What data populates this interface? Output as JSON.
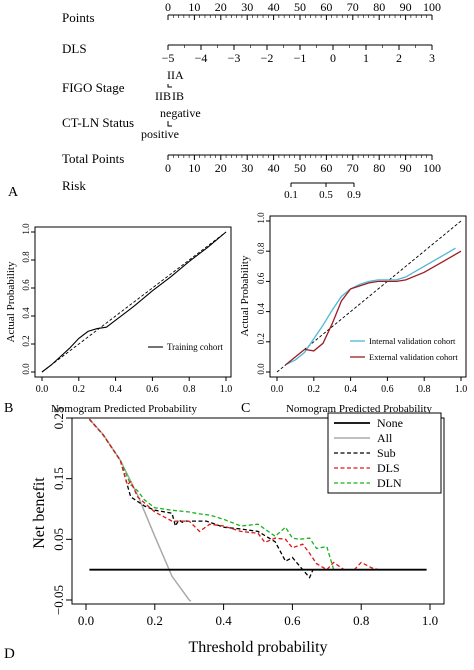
{
  "colors": {
    "ink": "#000000",
    "internal": "#4fb8d4",
    "external": "#9e1b24",
    "all": "#aaaaaa",
    "sub": "#000000",
    "dls": "#e01818",
    "dln": "#19b219"
  },
  "panels": {
    "A": "A",
    "B": "B",
    "C": "C",
    "D": "D"
  },
  "chart_data": [
    {
      "type": "nomogram",
      "panel": "A",
      "rows": [
        {
          "label": "Points",
          "scale": "points",
          "ticks": [
            "0",
            "10",
            "20",
            "30",
            "40",
            "50",
            "60",
            "70",
            "80",
            "90",
            "100"
          ]
        },
        {
          "label": "DLS",
          "ticks": [
            "−5",
            "−4",
            "−3",
            "−2",
            "−1",
            "0",
            "1",
            "2",
            "3"
          ]
        },
        {
          "label": "FIGO Stage",
          "categories": [
            "IIA",
            "IIB",
            "IB"
          ]
        },
        {
          "label": "CT-LN Status",
          "categories": [
            "negative",
            "positive"
          ]
        },
        {
          "label": "Total Points",
          "ticks": [
            "0",
            "10",
            "20",
            "30",
            "40",
            "50",
            "60",
            "70",
            "80",
            "90",
            "100"
          ]
        },
        {
          "label": "Risk",
          "ticks": [
            "0.1",
            "0.5",
            "0.9"
          ]
        }
      ]
    },
    {
      "type": "line",
      "panel": "B",
      "xlabel": "Nomogram Predicted Probability",
      "ylabel": "Actual Probability",
      "xlim": [
        0,
        1
      ],
      "ylim": [
        0,
        1
      ],
      "xticks": [
        "0.0",
        "0.2",
        "0.4",
        "0.6",
        "0.8",
        "1.0"
      ],
      "yticks": [
        "0.0",
        "0.2",
        "0.4",
        "0.6",
        "0.8",
        "1.0"
      ],
      "legend_position": "bottom-right",
      "series": [
        {
          "name": "Training cohort",
          "x": [
            0,
            0.05,
            0.1,
            0.15,
            0.2,
            0.25,
            0.3,
            0.35,
            0.4,
            0.5,
            0.6,
            0.7,
            0.8,
            0.9,
            1.0
          ],
          "y": [
            0,
            0.05,
            0.11,
            0.17,
            0.24,
            0.29,
            0.31,
            0.32,
            0.37,
            0.47,
            0.58,
            0.68,
            0.79,
            0.89,
            1.0
          ]
        }
      ],
      "reference_line": [
        [
          0,
          0
        ],
        [
          1,
          1
        ]
      ]
    },
    {
      "type": "line",
      "panel": "C",
      "xlabel": "Nomogram Predicted Probability",
      "ylabel": "Actual Probability",
      "xlim": [
        0,
        1
      ],
      "ylim": [
        0,
        1
      ],
      "xticks": [
        "0.0",
        "0.2",
        "0.4",
        "0.6",
        "0.8",
        "1.0"
      ],
      "yticks": [
        "0.0",
        "0.2",
        "0.4",
        "0.6",
        "0.8",
        "1.0"
      ],
      "legend_position": "bottom-right",
      "series": [
        {
          "name": "Internal validation cohort",
          "x": [
            0.05,
            0.1,
            0.15,
            0.2,
            0.25,
            0.3,
            0.35,
            0.4,
            0.45,
            0.5,
            0.55,
            0.6,
            0.65,
            0.7,
            0.8,
            0.9,
            0.97
          ],
          "y": [
            0.05,
            0.08,
            0.13,
            0.22,
            0.31,
            0.41,
            0.5,
            0.55,
            0.58,
            0.6,
            0.61,
            0.61,
            0.61,
            0.63,
            0.7,
            0.77,
            0.82
          ]
        },
        {
          "name": "External validation cohort",
          "x": [
            0.05,
            0.1,
            0.15,
            0.2,
            0.25,
            0.3,
            0.35,
            0.4,
            0.45,
            0.5,
            0.55,
            0.6,
            0.65,
            0.7,
            0.8,
            0.9,
            1.0
          ],
          "y": [
            0.05,
            0.1,
            0.15,
            0.14,
            0.19,
            0.32,
            0.47,
            0.55,
            0.57,
            0.59,
            0.6,
            0.6,
            0.6,
            0.61,
            0.66,
            0.73,
            0.8
          ]
        }
      ],
      "reference_line": [
        [
          0,
          0
        ],
        [
          1,
          1
        ]
      ]
    },
    {
      "type": "line",
      "panel": "D",
      "xlabel": "Threshold probability",
      "ylabel": "Net benefit",
      "xlim": [
        0,
        1
      ],
      "ylim": [
        -0.05,
        0.25
      ],
      "xticks": [
        "0.0",
        "0.2",
        "0.4",
        "0.6",
        "0.8",
        "1.0"
      ],
      "yticks": [
        "−0.05",
        "0.05",
        "0.15",
        "0.25"
      ],
      "ytick_values": [
        -0.05,
        0.05,
        0.15,
        0.25
      ],
      "legend_position": "top-right",
      "series": [
        {
          "name": "None",
          "x": [
            0.01,
            0.99
          ],
          "y": [
            0,
            0
          ]
        },
        {
          "name": "All",
          "x": [
            0.01,
            0.05,
            0.1,
            0.15,
            0.2,
            0.25,
            0.3,
            0.305
          ],
          "y": [
            0.248,
            0.223,
            0.18,
            0.123,
            0.055,
            -0.011,
            -0.05,
            -0.052
          ]
        },
        {
          "name": "Sub",
          "x": [
            0.01,
            0.05,
            0.1,
            0.13,
            0.17,
            0.2,
            0.25,
            0.26,
            0.27,
            0.28,
            0.29,
            0.3,
            0.32,
            0.35,
            0.4,
            0.45,
            0.5,
            0.55,
            0.58,
            0.6,
            0.63,
            0.65,
            0.66,
            0.67,
            0.7,
            0.75,
            0.8,
            0.85,
            0.99
          ],
          "y": [
            0.248,
            0.222,
            0.18,
            0.12,
            0.105,
            0.098,
            0.093,
            0.072,
            0.082,
            0.078,
            0.08,
            0.08,
            0.08,
            0.08,
            0.07,
            0.067,
            0.063,
            0.046,
            0.014,
            0.02,
            0.0,
            -0.013,
            0.0,
            0.0,
            0.0,
            0.0,
            0.0,
            0.0,
            0.0
          ]
        },
        {
          "name": "DLS",
          "x": [
            0.01,
            0.05,
            0.1,
            0.12,
            0.13,
            0.15,
            0.17,
            0.2,
            0.25,
            0.3,
            0.33,
            0.36,
            0.4,
            0.45,
            0.5,
            0.52,
            0.55,
            0.58,
            0.6,
            0.63,
            0.65,
            0.67,
            0.7,
            0.72,
            0.75,
            0.78,
            0.8,
            0.83,
            0.85,
            0.99
          ],
          "y": [
            0.248,
            0.222,
            0.18,
            0.14,
            0.145,
            0.12,
            0.11,
            0.095,
            0.08,
            0.08,
            0.063,
            0.075,
            0.072,
            0.063,
            0.06,
            0.045,
            0.052,
            0.05,
            0.036,
            0.042,
            0.027,
            0.01,
            0.0,
            0.012,
            0.0,
            0.0,
            0.012,
            0.003,
            0.0,
            0.0
          ]
        },
        {
          "name": "DLN",
          "x": [
            0.01,
            0.05,
            0.1,
            0.13,
            0.15,
            0.17,
            0.2,
            0.25,
            0.3,
            0.33,
            0.36,
            0.4,
            0.45,
            0.5,
            0.55,
            0.58,
            0.6,
            0.62,
            0.65,
            0.67,
            0.7,
            0.72,
            0.75,
            0.78,
            0.8,
            0.82,
            0.85,
            0.99
          ],
          "y": [
            0.248,
            0.222,
            0.18,
            0.14,
            0.13,
            0.115,
            0.102,
            0.098,
            0.095,
            0.092,
            0.09,
            0.083,
            0.072,
            0.075,
            0.055,
            0.07,
            0.052,
            0.05,
            0.052,
            0.035,
            0.038,
            0.0,
            0.0,
            0.0,
            0.0,
            0.0,
            0.0,
            0.0
          ]
        }
      ]
    }
  ]
}
